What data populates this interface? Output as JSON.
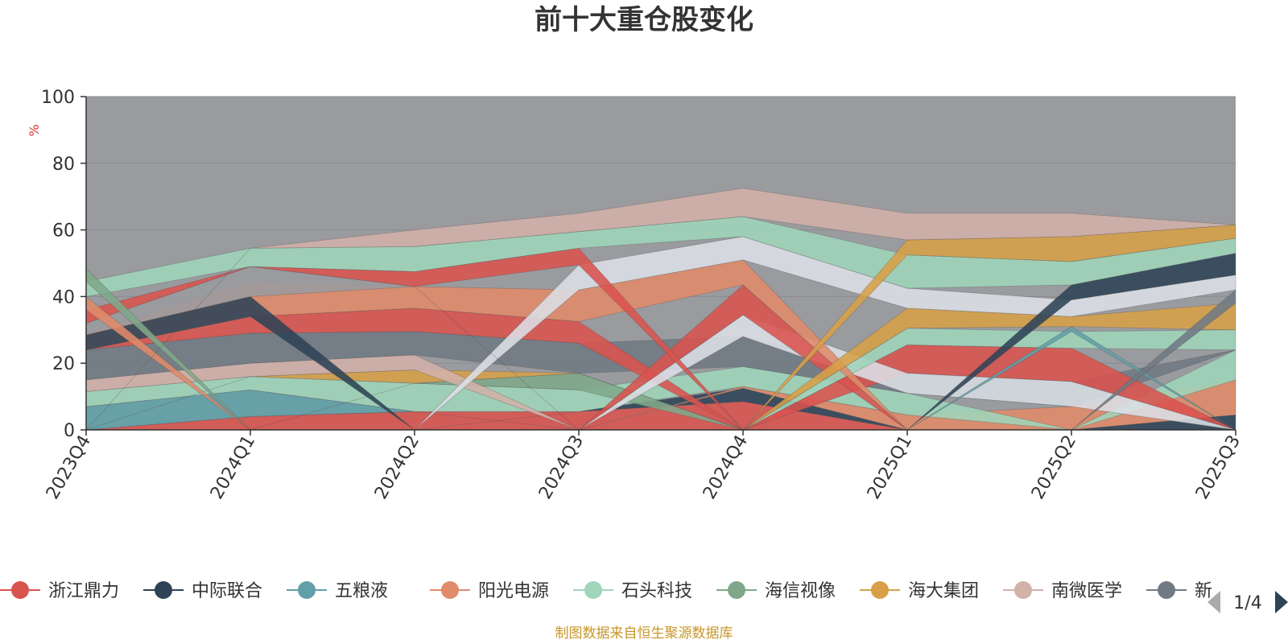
{
  "chart_data": {
    "type": "area",
    "title": "前十大重仓股变化",
    "ylabel": "%",
    "ylim": [
      0,
      100
    ],
    "yticks": [
      "0",
      "20",
      "40",
      "60",
      "80",
      "100"
    ],
    "categories": [
      "2023Q4",
      "2024Q1",
      "2024Q2",
      "2024Q3",
      "2024Q4",
      "2025Q1",
      "2025Q2",
      "2025Q3"
    ],
    "background_total_color": "#9a9b9f",
    "grid": true,
    "legend_position": "bottom",
    "series": [
      {
        "name": "浙江鼎力",
        "color": "#d9534f",
        "values": [
          [
            0,
            0
          ],
          [
            0,
            4
          ],
          [
            0,
            5.5
          ],
          [
            0,
            5.5
          ],
          [
            0,
            8.5
          ],
          [
            0,
            0
          ],
          [
            0,
            0
          ],
          [
            0,
            0
          ]
        ]
      },
      {
        "name": "中际联合",
        "color": "#2e4357",
        "values": [
          [
            0,
            0
          ],
          [
            0,
            0
          ],
          [
            0,
            0
          ],
          [
            5.5,
            5.5
          ],
          [
            8.5,
            12.5
          ],
          [
            0,
            0
          ],
          [
            0,
            0
          ],
          [
            0,
            4.5
          ]
        ]
      },
      {
        "name": "五粮液",
        "color": "#61a0a8",
        "values": [
          [
            0,
            7
          ],
          [
            4,
            12
          ],
          [
            5.5,
            5.5
          ],
          [
            0,
            0
          ],
          [
            0,
            0
          ],
          [
            0,
            0
          ],
          [
            0,
            0
          ],
          [
            0,
            0
          ]
        ]
      },
      {
        "name": "阳光电源",
        "color": "#e08b6a",
        "values": [
          [
            0,
            0
          ],
          [
            0,
            0
          ],
          [
            0,
            0
          ],
          [
            0,
            0
          ],
          [
            12.5,
            13
          ],
          [
            0,
            4.5
          ],
          [
            0,
            7
          ],
          [
            4.5,
            15
          ]
        ]
      },
      {
        "name": "石头科技",
        "color": "#9fd5bb",
        "values": [
          [
            7,
            11.5
          ],
          [
            12,
            16
          ],
          [
            5.5,
            14
          ],
          [
            5.5,
            12
          ],
          [
            13,
            19
          ],
          [
            4.5,
            11
          ],
          [
            0,
            0
          ],
          [
            15,
            24
          ]
        ]
      },
      {
        "name": "海信视像",
        "color": "#7fa88a",
        "values": [
          [
            0,
            0
          ],
          [
            0,
            0
          ],
          [
            14,
            14
          ],
          [
            12,
            17
          ],
          [
            0,
            0
          ],
          [
            0,
            0
          ],
          [
            0,
            0
          ],
          [
            0,
            0
          ]
        ]
      },
      {
        "name": "海大集团",
        "color": "#d7a048",
        "values": [
          [
            0,
            0
          ],
          [
            16,
            16
          ],
          [
            14,
            18
          ],
          [
            17,
            17
          ],
          [
            0,
            0
          ],
          [
            0,
            0
          ],
          [
            0,
            0
          ],
          [
            0,
            0
          ]
        ]
      },
      {
        "name": "南微医学",
        "color": "#d2b1a9",
        "values": [
          [
            11.5,
            15
          ],
          [
            16,
            20
          ],
          [
            18,
            22.5
          ],
          [
            0,
            0
          ],
          [
            0,
            0
          ],
          [
            0,
            0
          ],
          [
            0,
            0
          ],
          [
            0,
            0
          ]
        ]
      },
      {
        "name": "新",
        "color": "#6f7a84",
        "values": [
          [
            15,
            24
          ],
          [
            20,
            29
          ],
          [
            22.5,
            29.5
          ],
          [
            17,
            26
          ],
          [
            19,
            28
          ],
          [
            11,
            17
          ],
          [
            7,
            14.5
          ],
          [
            24,
            24
          ]
        ]
      }
    ],
    "extra_layers": [
      {
        "color": "#d9534f",
        "values": [
          [
            24,
            24
          ],
          [
            29,
            34
          ],
          [
            29.5,
            36.5
          ],
          [
            26,
            32.5
          ],
          [
            0,
            0
          ],
          [
            17,
            25.5
          ],
          [
            14.5,
            24.5
          ],
          [
            0,
            0
          ]
        ]
      },
      {
        "color": "#dcdfe6",
        "values": [
          [
            0,
            0
          ],
          [
            0,
            0
          ],
          [
            0,
            0
          ],
          [
            0,
            0
          ],
          [
            28,
            34.5
          ],
          [
            11,
            17
          ],
          [
            7,
            14.5
          ],
          [
            0,
            0
          ]
        ]
      },
      {
        "color": "#d9534f",
        "values": [
          [
            0,
            0
          ],
          [
            0,
            0
          ],
          [
            0,
            0
          ],
          [
            0,
            0
          ],
          [
            34.5,
            43.5
          ],
          [
            0,
            0
          ],
          [
            0,
            0
          ],
          [
            0,
            0
          ]
        ]
      },
      {
        "color": "#9fd5bb",
        "values": [
          [
            0,
            0
          ],
          [
            0,
            0
          ],
          [
            0,
            0
          ],
          [
            0,
            0
          ],
          [
            0,
            0
          ],
          [
            25.5,
            30.5
          ],
          [
            24.5,
            29.5
          ],
          [
            24,
            30
          ]
        ]
      },
      {
        "color": "#61a0a8",
        "values": [
          [
            0,
            0
          ],
          [
            0,
            0
          ],
          [
            0,
            0
          ],
          [
            0,
            0
          ],
          [
            0,
            0
          ],
          [
            0,
            0
          ],
          [
            29.5,
            31
          ],
          [
            0,
            0
          ]
        ]
      },
      {
        "color": "#e08b6a",
        "values": [
          [
            24,
            29
          ],
          [
            34,
            44.5
          ],
          [
            36.5,
            43
          ],
          [
            32.5,
            42
          ],
          [
            43.5,
            51
          ],
          [
            0,
            0
          ],
          [
            0,
            0
          ],
          [
            0,
            0
          ]
        ]
      },
      {
        "color": "#2e4357",
        "values": [
          [
            24,
            28.5
          ],
          [
            34,
            40
          ],
          [
            0,
            0
          ],
          [
            0,
            0
          ],
          [
            0,
            0
          ],
          [
            0,
            0
          ],
          [
            0,
            0
          ],
          [
            0,
            0
          ]
        ]
      },
      {
        "color": "#d7a048",
        "values": [
          [
            0,
            0
          ],
          [
            0,
            0
          ],
          [
            0,
            0
          ],
          [
            0,
            0
          ],
          [
            0,
            0
          ],
          [
            30.5,
            36.5
          ],
          [
            31,
            34
          ],
          [
            30,
            38
          ]
        ]
      },
      {
        "color": "#6f7a84",
        "values": [
          [
            0,
            0
          ],
          [
            0,
            0
          ],
          [
            0,
            0
          ],
          [
            0,
            0
          ],
          [
            0,
            0
          ],
          [
            0,
            0
          ],
          [
            0,
            0
          ],
          [
            38,
            42
          ]
        ]
      },
      {
        "color": "#dcdfe6",
        "values": [
          [
            0,
            0
          ],
          [
            0,
            0
          ],
          [
            0,
            0
          ],
          [
            42,
            49.5
          ],
          [
            51,
            58
          ],
          [
            36.5,
            42.5
          ],
          [
            34,
            39
          ],
          [
            42,
            46.5
          ]
        ]
      },
      {
        "color": "#2e4357",
        "values": [
          [
            0,
            0
          ],
          [
            0,
            0
          ],
          [
            0,
            0
          ],
          [
            0,
            0
          ],
          [
            0,
            0
          ],
          [
            0,
            0
          ],
          [
            39,
            43.5
          ],
          [
            46.5,
            53
          ]
        ]
      },
      {
        "color": "#9a9b9f",
        "values": [
          [
            28.5,
            32
          ],
          [
            40,
            49
          ],
          [
            43,
            43
          ],
          [
            0,
            0
          ],
          [
            0,
            0
          ],
          [
            0,
            0
          ],
          [
            0,
            0
          ],
          [
            0,
            0
          ]
        ]
      },
      {
        "color": "#d9534f",
        "values": [
          [
            32,
            36
          ],
          [
            49,
            49
          ],
          [
            43,
            47.5
          ],
          [
            49.5,
            54.5
          ],
          [
            0,
            0
          ],
          [
            0,
            0
          ],
          [
            0,
            0
          ],
          [
            0,
            0
          ]
        ]
      },
      {
        "color": "#e08b6a",
        "values": [
          [
            36,
            40
          ],
          [
            0,
            0
          ],
          [
            0,
            0
          ],
          [
            0,
            0
          ],
          [
            0,
            0
          ],
          [
            0,
            0
          ],
          [
            0,
            0
          ],
          [
            0,
            0
          ]
        ]
      },
      {
        "color": "#9fd5bb",
        "values": [
          [
            40,
            44.5
          ],
          [
            49,
            54.5
          ],
          [
            47.5,
            55
          ],
          [
            54.5,
            59.5
          ],
          [
            58,
            64
          ],
          [
            42.5,
            52.5
          ],
          [
            43.5,
            50.5
          ],
          [
            53,
            57.5
          ]
        ]
      },
      {
        "color": "#7fa88a",
        "values": [
          [
            44.5,
            48.5
          ],
          [
            0,
            0
          ],
          [
            0,
            0
          ],
          [
            0,
            0
          ],
          [
            0,
            0
          ],
          [
            0,
            0
          ],
          [
            0,
            0
          ],
          [
            0,
            0
          ]
        ]
      },
      {
        "color": "#d7a048",
        "values": [
          [
            0,
            0
          ],
          [
            0,
            0
          ],
          [
            0,
            0
          ],
          [
            0,
            0
          ],
          [
            0,
            0
          ],
          [
            52.5,
            57
          ],
          [
            50.5,
            58
          ],
          [
            57.5,
            61.5
          ]
        ]
      },
      {
        "color": "#d2b1a9",
        "values": [
          [
            0,
            0
          ],
          [
            54.5,
            54.5
          ],
          [
            55,
            60
          ],
          [
            59.5,
            65
          ],
          [
            64,
            72.5
          ],
          [
            57,
            65
          ],
          [
            58,
            65
          ],
          [
            61.5,
            61.5
          ]
        ]
      }
    ],
    "source": "制图数据来自恒生聚源数据库",
    "pager": "1/4"
  }
}
